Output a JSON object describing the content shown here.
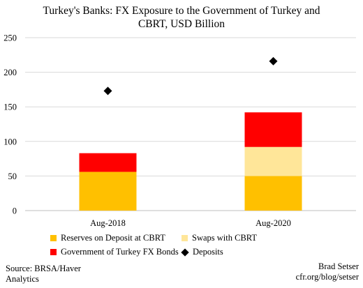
{
  "chart_data": {
    "type": "bar",
    "stacked": true,
    "title": "Turkey's Banks: FX Exposure to the Government of Turkey and CBRT, USD Billion",
    "categories": [
      "Aug-2018",
      "Aug-2020"
    ],
    "series": [
      {
        "name": "Reserves on Deposit at CBRT",
        "values": [
          56,
          50
        ],
        "color": "#FFC000",
        "kind": "bar"
      },
      {
        "name": "Swaps with CBRT",
        "values": [
          0,
          42
        ],
        "color": "#FFE699",
        "kind": "bar"
      },
      {
        "name": "Government of Turkey FX Bonds",
        "values": [
          27,
          50
        ],
        "color": "#FF0000",
        "kind": "bar"
      },
      {
        "name": "Deposits",
        "values": [
          173,
          216
        ],
        "color": "#000000",
        "kind": "marker"
      }
    ],
    "ylim": [
      0,
      250
    ],
    "yticks": [
      0,
      50,
      100,
      150,
      200,
      250
    ],
    "grid": true,
    "legend_position": "bottom"
  },
  "title_line1": "Turkey's Banks: FX Exposure to the Government of Turkey and",
  "title_line2": "CBRT, USD Billion",
  "legend": {
    "reserves": "Reserves on Deposit at CBRT",
    "swaps": "Swaps with CBRT",
    "bonds": "Government of Turkey FX Bonds",
    "deposits": "Deposits"
  },
  "source_line1": "Source: BRSA/Haver",
  "source_line2": "Analytics",
  "author_line1": "Brad Setser",
  "author_line2": "cfr.org/blog/setser"
}
